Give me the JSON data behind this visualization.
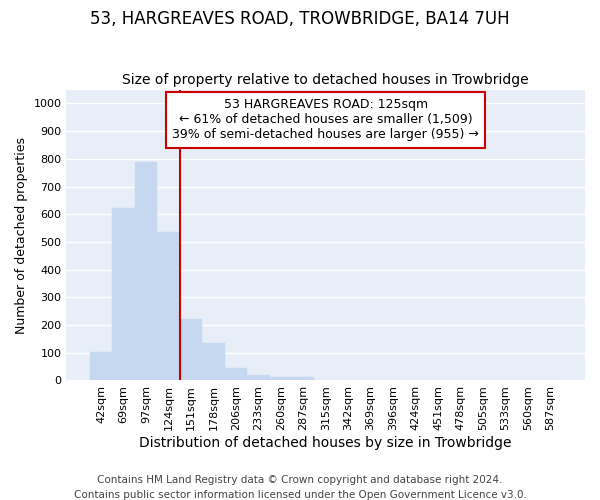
{
  "title": "53, HARGREAVES ROAD, TROWBRIDGE, BA14 7UH",
  "subtitle": "Size of property relative to detached houses in Trowbridge",
  "xlabel": "Distribution of detached houses by size in Trowbridge",
  "ylabel": "Number of detached properties",
  "categories": [
    "42sqm",
    "69sqm",
    "97sqm",
    "124sqm",
    "151sqm",
    "178sqm",
    "206sqm",
    "233sqm",
    "260sqm",
    "287sqm",
    "315sqm",
    "342sqm",
    "369sqm",
    "396sqm",
    "424sqm",
    "451sqm",
    "478sqm",
    "505sqm",
    "533sqm",
    "560sqm",
    "587sqm"
  ],
  "values": [
    102,
    622,
    790,
    535,
    222,
    135,
    46,
    18,
    14,
    11,
    0,
    0,
    0,
    0,
    0,
    0,
    0,
    0,
    0,
    0,
    0
  ],
  "bar_color": "#c5d8f0",
  "bar_edge_color": "#c5d8f0",
  "vline_color": "#cc0000",
  "vline_xindex": 3,
  "annotation_text": "53 HARGREAVES ROAD: 125sqm\n← 61% of detached houses are smaller (1,509)\n39% of semi-detached houses are larger (955) →",
  "annotation_box_facecolor": "#ffffff",
  "annotation_box_edgecolor": "#cc0000",
  "ylim": [
    0,
    1050
  ],
  "yticks": [
    0,
    100,
    200,
    300,
    400,
    500,
    600,
    700,
    800,
    900,
    1000
  ],
  "figure_facecolor": "#ffffff",
  "axes_facecolor": "#e8eef8",
  "grid_color": "#ffffff",
  "title_fontsize": 12,
  "subtitle_fontsize": 10,
  "xlabel_fontsize": 10,
  "ylabel_fontsize": 9,
  "tick_fontsize": 8,
  "annotation_fontsize": 9,
  "footer_fontsize": 7.5,
  "footer": "Contains HM Land Registry data © Crown copyright and database right 2024.\nContains public sector information licensed under the Open Government Licence v3.0."
}
